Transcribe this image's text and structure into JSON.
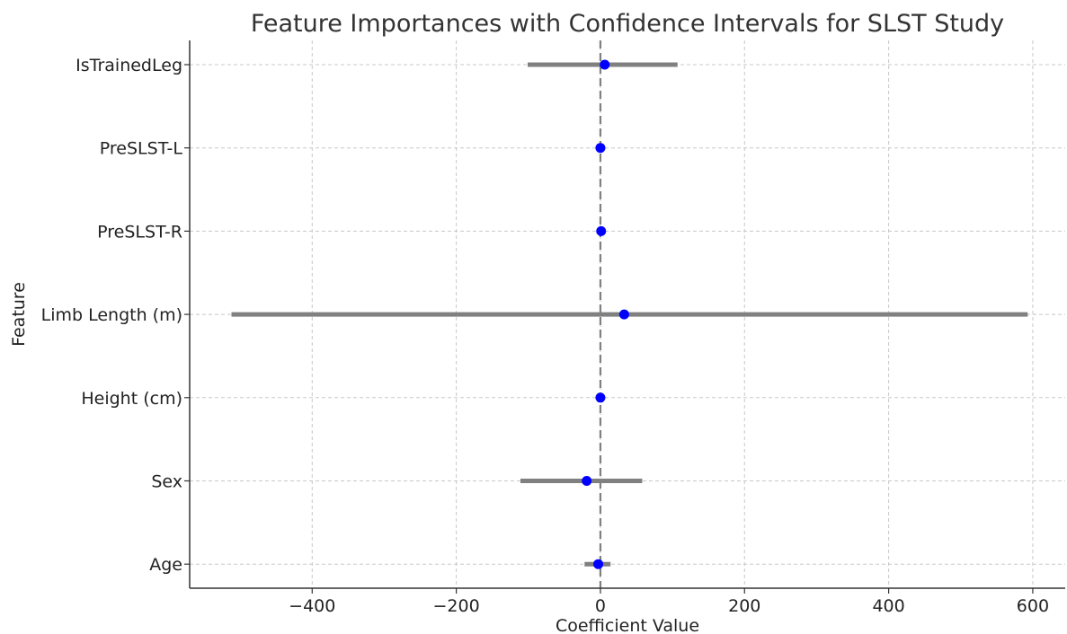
{
  "chart_data": {
    "type": "scatter",
    "title": "Feature Importances with Confidence Intervals for SLST Study",
    "xlabel": "Coefficient Value",
    "ylabel": "Feature",
    "xlim": [
      -570,
      645
    ],
    "xticks": [
      -400,
      -200,
      0,
      200,
      400,
      600
    ],
    "xtick_labels": [
      "−400",
      "−200",
      "0",
      "200",
      "400",
      "600"
    ],
    "grid": true,
    "reference_line_x": 0,
    "colors": {
      "point": "#0000ff",
      "errorbar": "#808080",
      "reference_line": "#808080"
    },
    "features": [
      {
        "label": "IsTrainedLeg",
        "value": 6,
        "ci_low": -101,
        "ci_high": 107
      },
      {
        "label": "PreSLST-L",
        "value": 0,
        "ci_low": -1,
        "ci_high": 1
      },
      {
        "label": "PreSLST-R",
        "value": 1,
        "ci_low": 0,
        "ci_high": 2
      },
      {
        "label": "Limb Length (m)",
        "value": 33,
        "ci_low": -512,
        "ci_high": 593
      },
      {
        "label": "Height (cm)",
        "value": 0,
        "ci_low": -1,
        "ci_high": 1
      },
      {
        "label": "Sex",
        "value": -19,
        "ci_low": -111,
        "ci_high": 58
      },
      {
        "label": "Age",
        "value": -3,
        "ci_low": -22,
        "ci_high": 14
      }
    ]
  }
}
